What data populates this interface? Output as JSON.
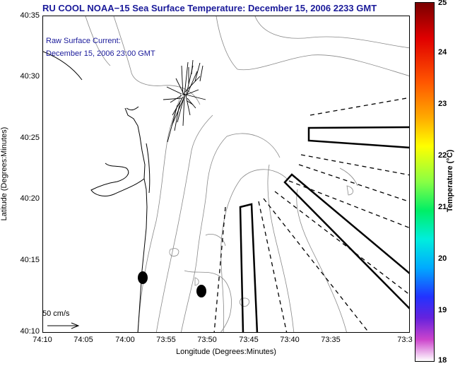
{
  "title": "RU COOL  NOAA−15  Sea Surface Temperature:  December 15, 2006 2233 GMT",
  "overlay": {
    "line1": "Raw Surface Current:",
    "line2": "December 15, 2006 23:00 GMT"
  },
  "axes": {
    "xlabel": "Longitude (Degrees:Minutes)",
    "ylabel": "Latitude (Degrees:Minutes)",
    "x_ticks": [
      "74:10",
      "74:05",
      "74:00",
      "73:55",
      "73:50",
      "73:45",
      "73:40",
      "73:35",
      "73:3"
    ],
    "y_ticks": [
      "40:35",
      "40:30",
      "40:25",
      "40:20",
      "40:15",
      "40:10"
    ]
  },
  "scale": {
    "label": "50 cm/s"
  },
  "colorbar": {
    "label": "Temperature (°C)",
    "ticks": [
      "25",
      "24",
      "23",
      "22",
      "21",
      "20",
      "19",
      "18"
    ],
    "range": [
      18,
      25
    ]
  },
  "colors": {
    "title": "#1a1a9a",
    "coastline": "#000000",
    "bathymetry": "#888888",
    "vectors": "#000000"
  }
}
